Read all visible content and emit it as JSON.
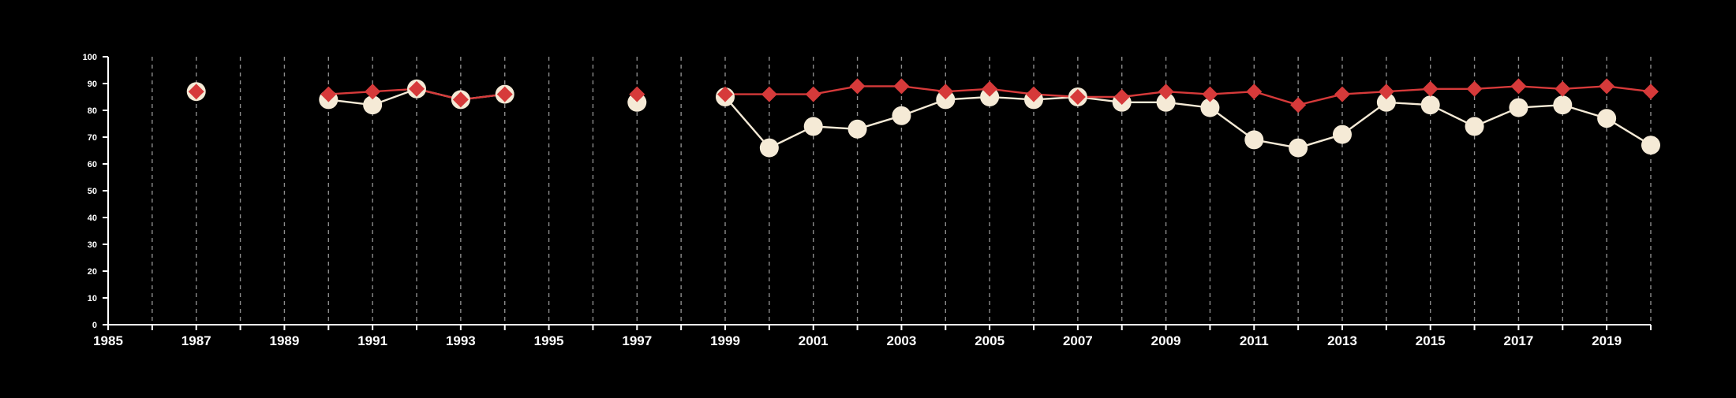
{
  "chart_data": {
    "type": "line",
    "x_axis": {
      "range": [
        1985,
        2020
      ],
      "tick_labels": [
        "1985",
        "1987",
        "1989",
        "1991",
        "1993",
        "1995",
        "1997",
        "1999",
        "2001",
        "2003",
        "2005",
        "2007",
        "2009",
        "2011",
        "2013",
        "2015",
        "2017",
        "2019"
      ]
    },
    "y_axis": {
      "range": [
        0,
        100
      ],
      "tick_labels": [
        "0",
        "10",
        "20",
        "30",
        "40",
        "50",
        "60",
        "70",
        "80",
        "90",
        "100"
      ]
    },
    "grid": "vertical dashed lines at every year",
    "background": "#000000",
    "series": [
      {
        "marker": "circle",
        "color": "#f5ead6",
        "points": [
          [
            1987,
            87
          ],
          [
            1990,
            84
          ],
          [
            1991,
            82
          ],
          [
            1992,
            88
          ],
          [
            1993,
            84
          ],
          [
            1994,
            86
          ],
          [
            1997,
            83
          ],
          [
            1999,
            85
          ],
          [
            2000,
            66
          ],
          [
            2001,
            74
          ],
          [
            2002,
            73
          ],
          [
            2003,
            78
          ],
          [
            2004,
            84
          ],
          [
            2005,
            85
          ],
          [
            2006,
            84
          ],
          [
            2007,
            85
          ],
          [
            2008,
            83
          ],
          [
            2009,
            83
          ],
          [
            2010,
            81
          ],
          [
            2011,
            69
          ],
          [
            2012,
            66
          ],
          [
            2013,
            71
          ],
          [
            2014,
            83
          ],
          [
            2015,
            82
          ],
          [
            2016,
            74
          ],
          [
            2017,
            81
          ],
          [
            2018,
            82
          ],
          [
            2019,
            77
          ],
          [
            2020,
            67
          ]
        ]
      },
      {
        "marker": "diamond",
        "color": "#d63a3a",
        "points": [
          [
            1987,
            87
          ],
          [
            1990,
            86
          ],
          [
            1991,
            87
          ],
          [
            1992,
            88
          ],
          [
            1993,
            84
          ],
          [
            1994,
            86
          ],
          [
            1997,
            86
          ],
          [
            1999,
            86
          ],
          [
            2000,
            86
          ],
          [
            2001,
            86
          ],
          [
            2002,
            89
          ],
          [
            2003,
            89
          ],
          [
            2004,
            87
          ],
          [
            2005,
            88
          ],
          [
            2006,
            86
          ],
          [
            2007,
            85
          ],
          [
            2008,
            85
          ],
          [
            2009,
            87
          ],
          [
            2010,
            86
          ],
          [
            2011,
            87
          ],
          [
            2012,
            82
          ],
          [
            2013,
            86
          ],
          [
            2014,
            87
          ],
          [
            2015,
            88
          ],
          [
            2016,
            88
          ],
          [
            2017,
            89
          ],
          [
            2018,
            88
          ],
          [
            2019,
            89
          ],
          [
            2020,
            87
          ]
        ]
      }
    ]
  }
}
